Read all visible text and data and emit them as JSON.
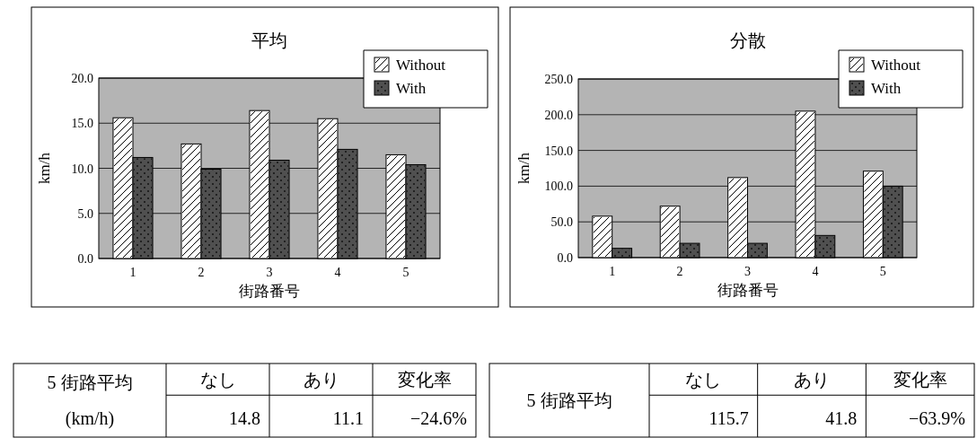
{
  "chart_data": [
    {
      "type": "bar",
      "title": "平均",
      "xlabel": "街路番号",
      "ylabel": "km/h",
      "categories": [
        "1",
        "2",
        "3",
        "4",
        "5"
      ],
      "series": [
        {
          "name": "Without",
          "color": "#ffffff",
          "values": [
            15.6,
            12.7,
            16.4,
            15.5,
            11.5
          ]
        },
        {
          "name": "With",
          "color": "#505050",
          "values": [
            11.2,
            9.9,
            10.9,
            12.1,
            10.4
          ]
        }
      ],
      "ylim": [
        0,
        20
      ],
      "yticks": [
        {
          "value": 0,
          "label": "0.0"
        },
        {
          "value": 5,
          "label": "5.0"
        },
        {
          "value": 10,
          "label": "10.0"
        },
        {
          "value": 15,
          "label": "15.0"
        },
        {
          "value": 20,
          "label": "20.0"
        }
      ],
      "grid": "y",
      "legend": "top right"
    },
    {
      "type": "bar",
      "title": "分散",
      "xlabel": "街路番号",
      "ylabel": "km/h",
      "categories": [
        "1",
        "2",
        "3",
        "4",
        "5"
      ],
      "series": [
        {
          "name": "Without",
          "color": "#ffffff",
          "values": [
            58,
            72,
            112,
            205,
            121
          ]
        },
        {
          "name": "With",
          "color": "#505050",
          "values": [
            13,
            20,
            20,
            31,
            100
          ]
        }
      ],
      "ylim": [
        0,
        250
      ],
      "yticks": [
        {
          "value": 0,
          "label": "0.0"
        },
        {
          "value": 50,
          "label": "50.0"
        },
        {
          "value": 100,
          "label": "100.0"
        },
        {
          "value": 150,
          "label": "150.0"
        },
        {
          "value": 200,
          "label": "200.0"
        },
        {
          "value": 250,
          "label": "250.0"
        }
      ],
      "grid": "y",
      "legend": "top right"
    },
    {
      "type": "other",
      "title": "5 街路平均",
      "subtitle": "(km/h)",
      "categories": [
        "なし",
        "あり",
        "変化率"
      ],
      "annotations": [
        "14.8",
        "11.1",
        "−24.6%"
      ]
    },
    {
      "type": "other",
      "title": "5 街路平均",
      "categories": [
        "なし",
        "あり",
        "変化率"
      ],
      "annotations": [
        "115.7",
        "41.8",
        "−63.9%"
      ]
    }
  ]
}
